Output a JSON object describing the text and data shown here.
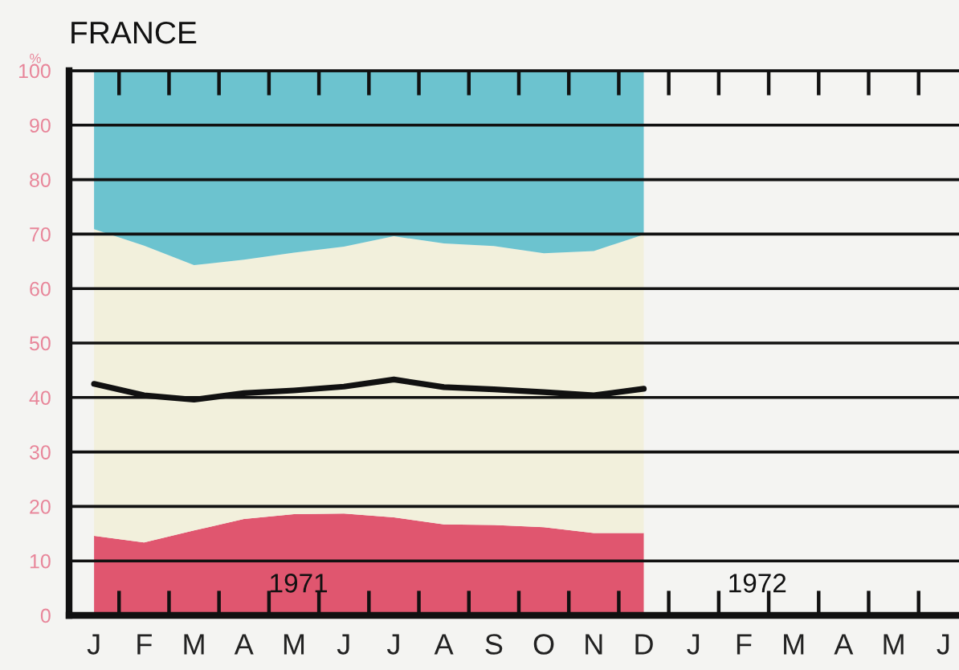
{
  "chart_data": {
    "type": "area",
    "title": "FRANCE",
    "ylabel": "%",
    "stacked": true,
    "grid": "y",
    "legend": false,
    "categories": [
      "J",
      "F",
      "M",
      "A",
      "M",
      "J",
      "J",
      "A",
      "S",
      "O",
      "N",
      "D",
      "J",
      "F",
      "M",
      "A",
      "M",
      "J"
    ],
    "series": [
      {
        "color": "#e0566f",
        "values": [
          14.6,
          13.4,
          15.6,
          17.7,
          18.6,
          18.7,
          18.0,
          16.7,
          16.6,
          16.2,
          15.1,
          15.1,
          null,
          null,
          null,
          null,
          null,
          null
        ]
      },
      {
        "color": "#f2f0dc",
        "values": [
          56.3,
          54.5,
          48.7,
          47.6,
          48.0,
          49.0,
          51.6,
          51.6,
          51.2,
          50.3,
          51.8,
          54.8,
          null,
          null,
          null,
          null,
          null,
          null
        ]
      },
      {
        "color": "#6cc3cf",
        "values": [
          29.1,
          32.1,
          35.7,
          34.7,
          33.4,
          32.3,
          30.4,
          31.7,
          32.2,
          33.5,
          33.1,
          30.1,
          null,
          null,
          null,
          null,
          null,
          null
        ]
      },
      {
        "type": "line",
        "color": "#111111",
        "values": [
          42.5,
          40.4,
          39.6,
          40.8,
          41.3,
          42.0,
          43.3,
          41.9,
          41.5,
          41.0,
          40.4,
          41.6,
          null,
          null,
          null,
          null,
          null,
          null
        ]
      }
    ],
    "ylim": [
      0,
      100
    ],
    "yticks": [
      0,
      10,
      20,
      30,
      40,
      50,
      60,
      70,
      80,
      90,
      100
    ],
    "annotations": [
      "1971",
      "1972"
    ]
  }
}
